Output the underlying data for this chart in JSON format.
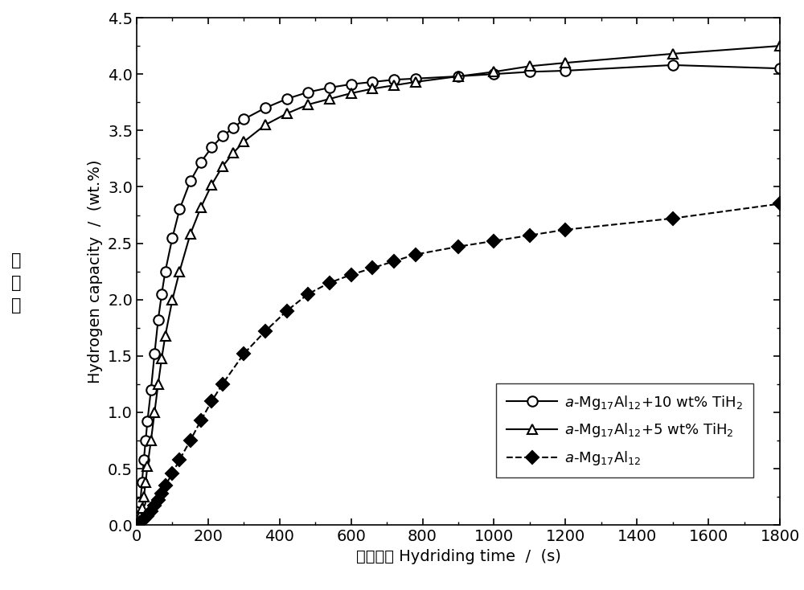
{
  "series": [
    {
      "label": "$\\itа$-Mg$_{17}$Al$_{12}$+10 wt% TiH$_2$",
      "marker": "o",
      "filled": false,
      "linestyle": "-",
      "color": "black",
      "x": [
        0,
        5,
        10,
        15,
        20,
        25,
        30,
        40,
        50,
        60,
        70,
        80,
        100,
        120,
        150,
        180,
        210,
        240,
        270,
        300,
        360,
        420,
        480,
        540,
        600,
        660,
        720,
        780,
        900,
        1000,
        1100,
        1200,
        1500,
        1800
      ],
      "y": [
        0.0,
        0.08,
        0.2,
        0.38,
        0.58,
        0.75,
        0.92,
        1.2,
        1.52,
        1.82,
        2.05,
        2.25,
        2.55,
        2.8,
        3.05,
        3.22,
        3.35,
        3.45,
        3.52,
        3.6,
        3.7,
        3.78,
        3.84,
        3.88,
        3.91,
        3.93,
        3.95,
        3.96,
        3.98,
        4.0,
        4.02,
        4.03,
        4.08,
        4.05
      ]
    },
    {
      "label": "$\\itа$-Mg$_{17}$Al$_{12}$+5 wt% TiH$_2$",
      "marker": "^",
      "filled": false,
      "linestyle": "-",
      "color": "black",
      "x": [
        0,
        5,
        10,
        15,
        20,
        25,
        30,
        40,
        50,
        60,
        70,
        80,
        100,
        120,
        150,
        180,
        210,
        240,
        270,
        300,
        360,
        420,
        480,
        540,
        600,
        660,
        720,
        780,
        900,
        1000,
        1100,
        1200,
        1500,
        1800
      ],
      "y": [
        0.0,
        0.03,
        0.08,
        0.15,
        0.25,
        0.38,
        0.52,
        0.75,
        1.0,
        1.25,
        1.48,
        1.68,
        2.0,
        2.25,
        2.58,
        2.82,
        3.02,
        3.18,
        3.3,
        3.4,
        3.55,
        3.65,
        3.73,
        3.78,
        3.83,
        3.87,
        3.9,
        3.93,
        3.98,
        4.02,
        4.07,
        4.1,
        4.18,
        4.25
      ]
    },
    {
      "label": "$\\itа$-Mg$_{17}$Al$_{12}$",
      "marker": "D",
      "filled": true,
      "linestyle": "--",
      "color": "black",
      "x": [
        0,
        10,
        20,
        30,
        40,
        50,
        60,
        70,
        80,
        100,
        120,
        150,
        180,
        210,
        240,
        300,
        360,
        420,
        480,
        540,
        600,
        660,
        720,
        780,
        900,
        1000,
        1100,
        1200,
        1500,
        1800
      ],
      "y": [
        0.0,
        0.02,
        0.05,
        0.08,
        0.12,
        0.17,
        0.22,
        0.28,
        0.35,
        0.46,
        0.58,
        0.75,
        0.93,
        1.1,
        1.25,
        1.52,
        1.72,
        1.9,
        2.05,
        2.15,
        2.22,
        2.28,
        2.34,
        2.4,
        2.47,
        2.52,
        2.57,
        2.62,
        2.72,
        2.85
      ]
    }
  ],
  "xlabel": "氢化时间 Hydriding time  /  (s)",
  "ylabel": "Hydrogen capacity  /  (wt.%)",
  "ylabel_chinese": "氢\n容\n量",
  "xlim": [
    0,
    1800
  ],
  "ylim": [
    0.0,
    4.5
  ],
  "xticks": [
    0,
    200,
    400,
    600,
    800,
    1000,
    1200,
    1400,
    1600,
    1800
  ],
  "yticks": [
    0.0,
    0.5,
    1.0,
    1.5,
    2.0,
    2.5,
    3.0,
    3.5,
    4.0,
    4.5
  ],
  "figsize": [
    10.0,
    7.34
  ],
  "dpi": 100,
  "background_color": "#ffffff",
  "tick_fontsize": 14,
  "label_fontsize": 14,
  "legend_fontsize": 13
}
